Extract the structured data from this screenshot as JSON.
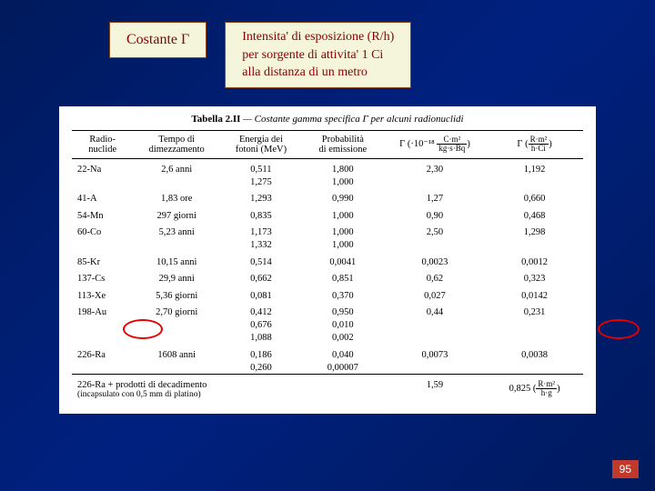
{
  "header": {
    "left": "Costante Γ",
    "right_l1": "Intensita' di esposizione (R/h)",
    "right_l2": "per sorgente di attivita' 1 Ci",
    "right_l3": "alla distanza di un metro"
  },
  "caption_prefix": "Tabella 2.II",
  "caption_rest": " — Costante gamma specifica Γ per alcuni radionuclidi",
  "cols": {
    "c1": "Radio-\nnuclide",
    "c2": "Tempo di\ndimezzamento",
    "c3": "Energia dei\nfotoni (MeV)",
    "c4": "Probabilità\ndi emissione",
    "c5_pre": "Γ (·10⁻¹⁸ ",
    "c5_num": "C·m²",
    "c5_den": "kg·s·Bq",
    "c5_post": ")",
    "c6_pre": "Γ (",
    "c6_num": "R·m²",
    "c6_den": "h·Ci",
    "c6_post": ")"
  },
  "rows": [
    {
      "grp": 1,
      "r": [
        "22-Na",
        "2,6 anni",
        "0,511",
        "1,800",
        "2,30",
        "1,192"
      ]
    },
    {
      "grp": 0,
      "r": [
        "",
        "",
        "1,275",
        "1,000",
        "",
        ""
      ]
    },
    {
      "grp": 1,
      "r": [
        "41-A",
        "1,83 ore",
        "1,293",
        "0,990",
        "1,27",
        "0,660"
      ]
    },
    {
      "grp": 1,
      "r": [
        "54-Mn",
        "297 giorni",
        "0,835",
        "1,000",
        "0,90",
        "0,468"
      ]
    },
    {
      "grp": 1,
      "r": [
        "60-Co",
        "5,23 anni",
        "1,173",
        "1,000",
        "2,50",
        "1,298"
      ]
    },
    {
      "grp": 0,
      "r": [
        "",
        "",
        "1,332",
        "1,000",
        "",
        ""
      ]
    },
    {
      "grp": 1,
      "r": [
        "85-Kr",
        "10,15 anni",
        "0,514",
        "0,0041",
        "0,0023",
        "0,0012"
      ]
    },
    {
      "grp": 1,
      "r": [
        "137-Cs",
        "29,9 anni",
        "0,662",
        "0,851",
        "0,62",
        "0,323"
      ]
    },
    {
      "grp": 1,
      "r": [
        "113-Xe",
        "5,36 giorni",
        "0,081",
        "0,370",
        "0,027",
        "0,0142"
      ]
    },
    {
      "grp": 1,
      "r": [
        "198-Au",
        "2,70 giorni",
        "0,412",
        "0,950",
        "0,44",
        "0,231"
      ]
    },
    {
      "grp": 0,
      "r": [
        "",
        "",
        "0,676",
        "0,010",
        "",
        ""
      ]
    },
    {
      "grp": 0,
      "r": [
        "",
        "",
        "1,088",
        "0,002",
        "",
        ""
      ]
    },
    {
      "grp": 1,
      "r": [
        "226-Ra",
        "1608 anni",
        "0,186",
        "0,040",
        "0,0073",
        "0,0038"
      ]
    },
    {
      "grp": 0,
      "r": [
        "",
        "",
        "0,260",
        "0,00007",
        "",
        ""
      ]
    }
  ],
  "footer": {
    "c1": "226-Ra + prodotti di decadimento",
    "c1b": "(incapsulato con 0,5 mm di platino)",
    "c5": "1,59",
    "c6_val": "0,825",
    "c6_num": "R·m²",
    "c6_den": "h·g"
  },
  "pagenum": "95"
}
